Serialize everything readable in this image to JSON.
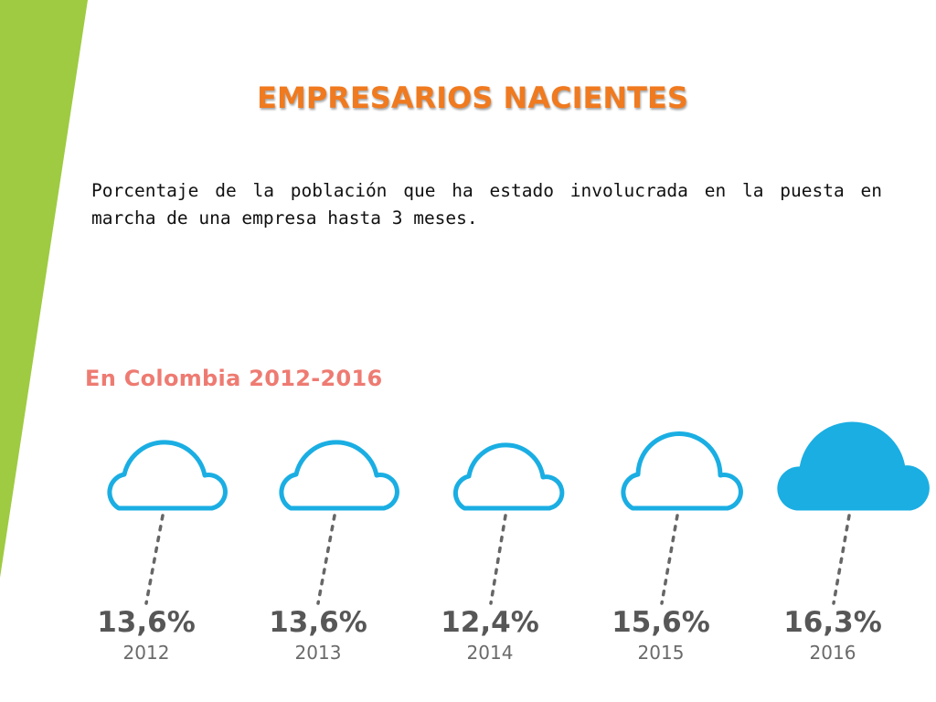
{
  "slide": {
    "title": "EMPRESARIOS NACIENTES",
    "description": "Porcentaje de la población que ha estado involucrada en la puesta en marcha de una empresa hasta 3 meses.",
    "subtitle": "En Colombia 2012-2016"
  },
  "colors": {
    "accent_green": "#9ecb41",
    "title_orange": "#f07a1f",
    "subtitle_coral": "#ee7b72",
    "cloud_blue": "#1aaee3",
    "value_gray": "#575757"
  },
  "items": [
    {
      "value": "13,6%",
      "year": "2012",
      "icon": "cloud-outline-icon"
    },
    {
      "value": "13,6%",
      "year": "2013",
      "icon": "cloud-outline-icon"
    },
    {
      "value": "12,4%",
      "year": "2014",
      "icon": "cloud-outline-icon"
    },
    {
      "value": "15,6%",
      "year": "2015",
      "icon": "cloud-outline-icon"
    },
    {
      "value": "16,3%",
      "year": "2016",
      "icon": "cloud-filled-icon"
    }
  ]
}
